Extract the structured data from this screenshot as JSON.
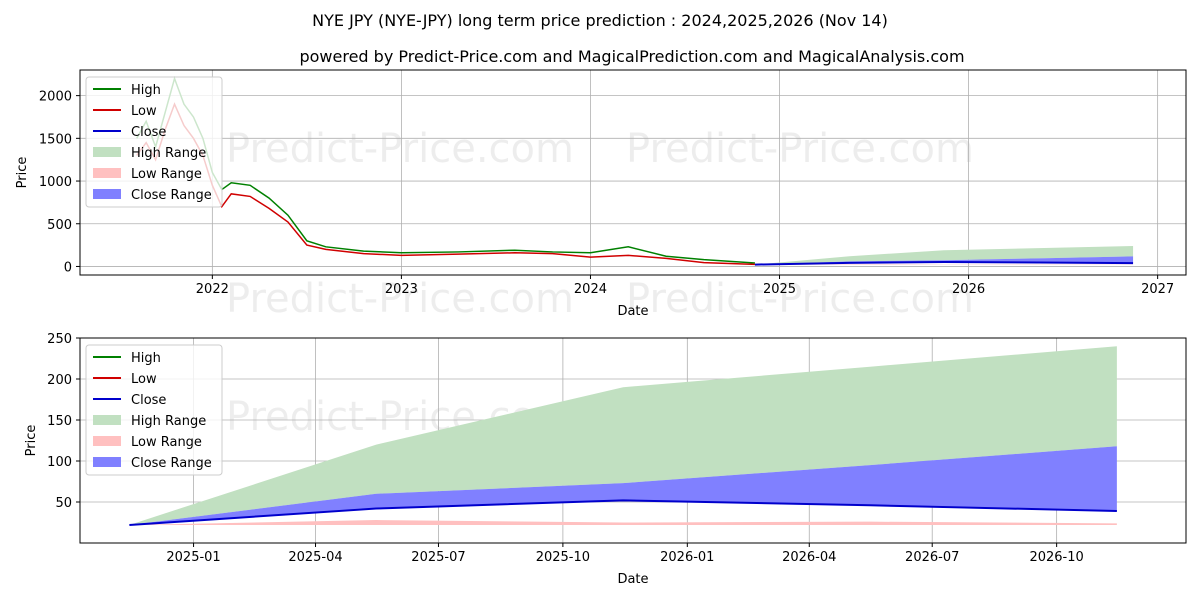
{
  "title": "NYE JPY (NYE-JPY) long term price prediction : 2024,2025,2026 (Nov 14)",
  "subtitle": "powered by Predict-Price.com and MagicalPrediction.com and MagicalAnalysis.com",
  "watermark": "Predict-Price.com",
  "colors": {
    "high": "#008000",
    "low": "#ff0000",
    "close": "#0000cc",
    "high_range": "#c1e0c1",
    "low_range": "#ffc0c0",
    "close_range": "#8080ff",
    "grid": "#b0b0b0"
  },
  "chart_data": [
    {
      "type": "line",
      "name": "history-and-forecast",
      "xlabel": "Date",
      "ylabel": "Price",
      "ylim": [
        -100,
        2300
      ],
      "xlim": [
        2021.3,
        2027.15
      ],
      "grid": true,
      "legend": "top-left",
      "x_ticks": [
        {
          "v": 2022,
          "label": "2022"
        },
        {
          "v": 2023,
          "label": "2023"
        },
        {
          "v": 2024,
          "label": "2024"
        },
        {
          "v": 2025,
          "label": "2025"
        },
        {
          "v": 2026,
          "label": "2026"
        },
        {
          "v": 2027,
          "label": "2027"
        }
      ],
      "y_ticks": [
        0,
        500,
        1000,
        1500,
        2000
      ],
      "legend_entries": [
        "High",
        "Low",
        "Close",
        "High Range",
        "Low Range",
        "Close Range"
      ],
      "history": {
        "x": [
          2021.6,
          2021.65,
          2021.7,
          2021.75,
          2021.8,
          2021.85,
          2021.9,
          2021.95,
          2022.0,
          2022.05,
          2022.1,
          2022.2,
          2022.3,
          2022.4,
          2022.5,
          2022.6,
          2022.8,
          2023.0,
          2023.3,
          2023.6,
          2023.8,
          2024.0,
          2024.2,
          2024.4,
          2024.6,
          2024.87
        ],
        "high": [
          1500,
          1700,
          1400,
          1800,
          2200,
          1900,
          1750,
          1500,
          1100,
          900,
          980,
          950,
          800,
          600,
          300,
          230,
          180,
          160,
          170,
          190,
          170,
          160,
          230,
          120,
          80,
          40
        ],
        "low": [
          1300,
          1450,
          1250,
          1600,
          1900,
          1650,
          1500,
          1300,
          950,
          700,
          850,
          820,
          680,
          520,
          250,
          200,
          150,
          130,
          145,
          160,
          150,
          110,
          130,
          95,
          45,
          25
        ]
      },
      "forecast": {
        "x": [
          2024.87,
          2025.37,
          2025.87,
          2026.37,
          2026.87
        ],
        "high_range_top": [
          22,
          120,
          190,
          215,
          240
        ],
        "close_range_top": [
          22,
          60,
          73,
          95,
          118
        ],
        "close": [
          22,
          42,
          52,
          46,
          39
        ],
        "low_range_top": [
          22,
          28,
          25,
          26,
          24
        ]
      }
    },
    {
      "type": "area",
      "name": "forecast-zoom",
      "xlabel": "Date",
      "ylabel": "Price",
      "ylim": [
        0,
        250
      ],
      "xlim": [
        2024.77,
        2027.01
      ],
      "grid": true,
      "legend": "top-left",
      "x_ticks": [
        {
          "v": 2025.0,
          "label": "2025-01"
        },
        {
          "v": 2025.247,
          "label": "2025-04"
        },
        {
          "v": 2025.496,
          "label": "2025-07"
        },
        {
          "v": 2025.748,
          "label": "2025-10"
        },
        {
          "v": 2026.0,
          "label": "2026-01"
        },
        {
          "v": 2026.247,
          "label": "2026-04"
        },
        {
          "v": 2026.496,
          "label": "2026-07"
        },
        {
          "v": 2026.748,
          "label": "2026-10"
        }
      ],
      "y_ticks": [
        50,
        100,
        150,
        200,
        250
      ],
      "legend_entries": [
        "High",
        "Low",
        "Close",
        "High Range",
        "Low Range",
        "Close Range"
      ],
      "forecast": {
        "x": [
          2024.87,
          2025.37,
          2025.87,
          2026.37,
          2026.87
        ],
        "high_range_top": [
          22,
          120,
          190,
          215,
          240
        ],
        "close_range_top": [
          22,
          60,
          73,
          95,
          118
        ],
        "close": [
          22,
          42,
          52,
          46,
          39
        ],
        "low_range_top": [
          22,
          28,
          25,
          26,
          24
        ]
      }
    }
  ]
}
